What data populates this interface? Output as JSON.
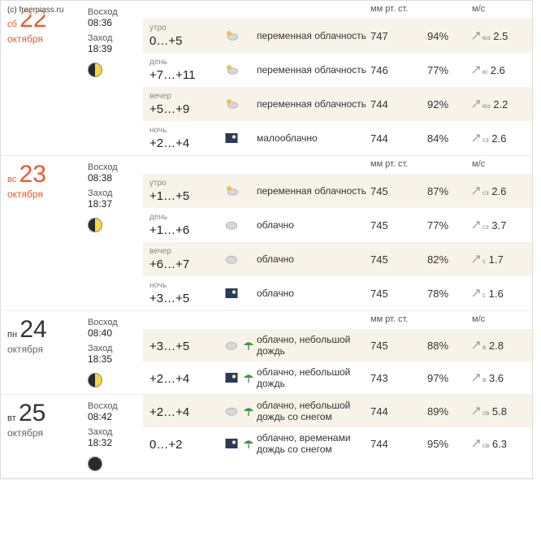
{
  "watermark": "(c) freemiass.ru",
  "header": {
    "pressure": "мм рт. ст.",
    "wind": "м/с"
  },
  "colors": {
    "weekend": "#e85a2a",
    "shade_bg": "#f7f3e8",
    "text": "#333333",
    "muted": "#888888"
  },
  "icons": {
    "partly": {
      "type": "sun-cloud"
    },
    "cloudy": {
      "type": "cloud"
    },
    "night": {
      "type": "night"
    },
    "rain": {
      "type": "umbrella"
    }
  },
  "days": [
    {
      "dow": "сб",
      "num": "22",
      "month": "октября",
      "weekend": true,
      "sunrise_label": "Восход",
      "sunrise": "08:36",
      "sunset_label": "Заход",
      "sunset": "18:39",
      "moon": "half",
      "show_header": true,
      "parts": [
        {
          "label": "утро",
          "temp": "0…+5",
          "icon": "partly",
          "desc": "переменная облачность",
          "press": "747",
          "hum": "94%",
          "wdir": "юз",
          "wspd": "2.5",
          "shade": true
        },
        {
          "label": "день",
          "temp": "+7…+11",
          "icon": "partly",
          "desc": "переменная облачность",
          "press": "746",
          "hum": "77%",
          "wdir": "ю",
          "wspd": "2.6",
          "shade": false
        },
        {
          "label": "вечер",
          "temp": "+5…+9",
          "icon": "partly",
          "desc": "переменная облачность",
          "press": "744",
          "hum": "92%",
          "wdir": "юз",
          "wspd": "2.2",
          "shade": true
        },
        {
          "label": "ночь",
          "temp": "+2…+4",
          "icon": "night",
          "desc": "малооблачно",
          "press": "744",
          "hum": "84%",
          "wdir": "сз",
          "wspd": "2.6",
          "shade": false
        }
      ]
    },
    {
      "dow": "вс",
      "num": "23",
      "month": "октября",
      "weekend": true,
      "sunrise_label": "Восход",
      "sunrise": "08:38",
      "sunset_label": "Заход",
      "sunset": "18:37",
      "moon": "half",
      "show_header": true,
      "parts": [
        {
          "label": "утро",
          "temp": "+1…+5",
          "icon": "partly",
          "desc": "переменная облачность",
          "press": "745",
          "hum": "87%",
          "wdir": "сз",
          "wspd": "2.6",
          "shade": true
        },
        {
          "label": "день",
          "temp": "+1…+6",
          "icon": "cloudy",
          "desc": "облачно",
          "press": "745",
          "hum": "77%",
          "wdir": "сз",
          "wspd": "3.7",
          "shade": false
        },
        {
          "label": "вечер",
          "temp": "+6…+7",
          "icon": "cloudy",
          "desc": "облачно",
          "press": "745",
          "hum": "82%",
          "wdir": "с",
          "wspd": "1.7",
          "shade": true
        },
        {
          "label": "ночь",
          "temp": "+3…+5",
          "icon": "night",
          "desc": "облачно",
          "press": "745",
          "hum": "78%",
          "wdir": "с",
          "wspd": "1.6",
          "shade": false
        }
      ]
    },
    {
      "dow": "пн",
      "num": "24",
      "month": "октября",
      "weekend": false,
      "sunrise_label": "Восход",
      "sunrise": "08:40",
      "sunset_label": "Заход",
      "sunset": "18:35",
      "moon": "half",
      "show_header": true,
      "parts": [
        {
          "label": "",
          "temp": "+3…+5",
          "icon": "cloudy",
          "icon2": "rain",
          "desc": "облачно, небольшой дождь",
          "press": "745",
          "hum": "88%",
          "wdir": "в",
          "wspd": "2.8",
          "shade": true
        },
        {
          "label": "",
          "temp": "+2…+4",
          "icon": "night",
          "icon2": "rain",
          "desc": "облачно, небольшой дождь",
          "press": "743",
          "hum": "97%",
          "wdir": "в",
          "wspd": "3.6",
          "shade": false
        }
      ]
    },
    {
      "dow": "вт",
      "num": "25",
      "month": "октября",
      "weekend": false,
      "sunrise_label": "Восход",
      "sunrise": "08:42",
      "sunset_label": "Заход",
      "sunset": "18:32",
      "moon": "full",
      "show_header": false,
      "parts": [
        {
          "label": "",
          "temp": "+2…+4",
          "icon": "cloudy",
          "icon2": "rain",
          "desc": "облачно, небольшой дождь со снегом",
          "press": "744",
          "hum": "89%",
          "wdir": "св",
          "wspd": "5.8",
          "shade": true
        },
        {
          "label": "",
          "temp": "0…+2",
          "icon": "night",
          "icon2": "rain",
          "desc": "облачно, временами дождь со снегом",
          "press": "744",
          "hum": "95%",
          "wdir": "св",
          "wspd": "6.3",
          "shade": false
        }
      ]
    }
  ]
}
